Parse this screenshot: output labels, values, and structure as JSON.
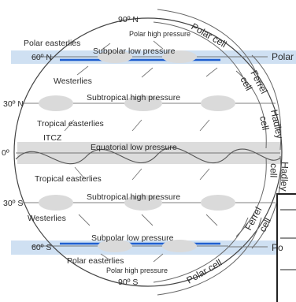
{
  "latitudes": {
    "n90": "90º N",
    "n60": "60º N",
    "n30": "30º N",
    "eq": "0º",
    "s30": "30º S",
    "s60": "60º S",
    "s90": "90º S"
  },
  "pressure": {
    "polar_high_n": "Polar high pressure",
    "subpolar_low_n": "Subpolar low pressure",
    "subtropical_high_n": "Subtropical high pressure",
    "equatorial_low": "Equatorial low pressure",
    "subtropical_high_s": "Subtropical high pressure",
    "subpolar_low_s": "Subpolar low pressure",
    "polar_high_s": "Polar high pressure"
  },
  "winds": {
    "polar_easterlies_n": "Polar easterlies",
    "westerlies_n": "Westerlies",
    "tropical_easterlies_n": "Tropical easterlies",
    "itcz": "ITCZ",
    "tropical_easterlies_s": "Tropical easterlies",
    "westerlies_s": "Westerlies",
    "polar_easterlies_s": "Polar easterlies"
  },
  "cells": {
    "polar_n": "Polar cell",
    "ferrel_n": "Ferrel",
    "ferrel_n_2": "cell",
    "hadley_n": "Hadley",
    "hadley_n_2": "cell",
    "hadley_s": "Hadley",
    "hadley_s_2": "cell",
    "ferrel_s": "Ferrel",
    "ferrel_s_2": "cell",
    "polar_s": "Polar cell",
    "polar_band_n": "Polar",
    "polar_band_s": "Po"
  },
  "colors": {
    "band_blue": "#cfe0f2",
    "line_blue": "#1f5fd0",
    "equator_band": "#dcdcdc",
    "pressure_oval": "#dadada"
  }
}
